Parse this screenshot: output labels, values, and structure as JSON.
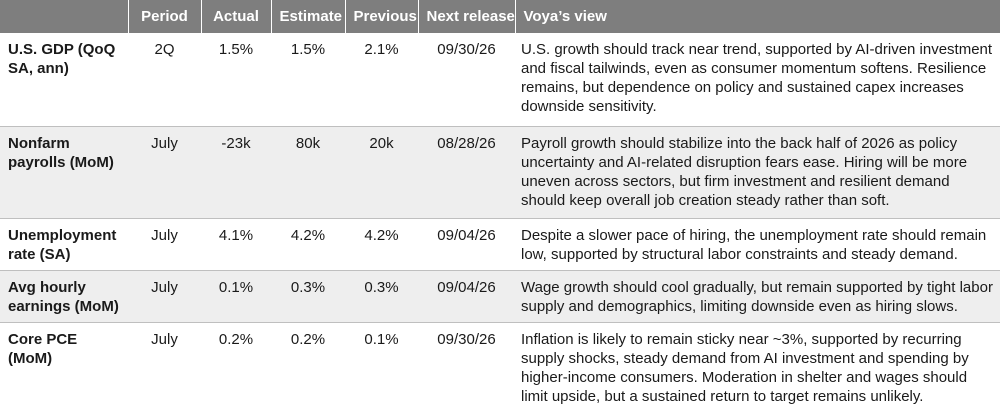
{
  "headers": {
    "indicator": "",
    "period": "Period",
    "actual": "Actual",
    "estimate": "Estimate",
    "previous": "Previous",
    "next_release": "Next release",
    "view": "Voya’s view"
  },
  "rows": [
    {
      "indicator": "U.S. GDP (QoQ SA, ann)",
      "period": "2Q",
      "actual": "1.5%",
      "estimate": "1.5%",
      "previous": "2.1%",
      "next_release": "09/30/26",
      "view": "U.S. growth should track near trend, supported by AI-driven investment and fiscal tailwinds, even as consumer momentum softens. Resilience remains, but dependence on policy and sustained capex increases downside sensitivity."
    },
    {
      "indicator": "Nonfarm payrolls (MoM)",
      "period": "July",
      "actual": "-23k",
      "estimate": "80k",
      "previous": "20k",
      "next_release": "08/28/26",
      "view": "Payroll growth should stabilize into the back half of 2026 as policy uncertainty and AI-related disruption fears ease. Hiring will be more uneven across sectors, but firm investment and resilient demand should keep overall job creation steady rather than soft."
    },
    {
      "indicator": "Unemployment rate (SA)",
      "period": "July",
      "actual": "4.1%",
      "estimate": "4.2%",
      "previous": "4.2%",
      "next_release": "09/04/26",
      "view": "Despite a slower pace of hiring, the unemployment rate should remain low, supported by structural labor constraints and steady demand."
    },
    {
      "indicator": "Avg hourly earnings (MoM)",
      "period": "July",
      "actual": "0.1%",
      "estimate": "0.3%",
      "previous": "0.3%",
      "next_release": "09/04/26",
      "view": "Wage growth should cool gradually, but remain supported by tight labor supply and demographics, limiting downside even as hiring slows."
    },
    {
      "indicator": "Core PCE (MoM)",
      "period": "July",
      "actual": "0.2%",
      "estimate": "0.2%",
      "previous": "0.1%",
      "next_release": "09/30/26",
      "view": "Inflation is likely to remain sticky near ~3%, supported by recurring supply shocks, steady demand from AI investment and spending by higher-income consumers. Moderation in shelter and wages should limit upside, but a sustained return to target remains unlikely."
    }
  ]
}
